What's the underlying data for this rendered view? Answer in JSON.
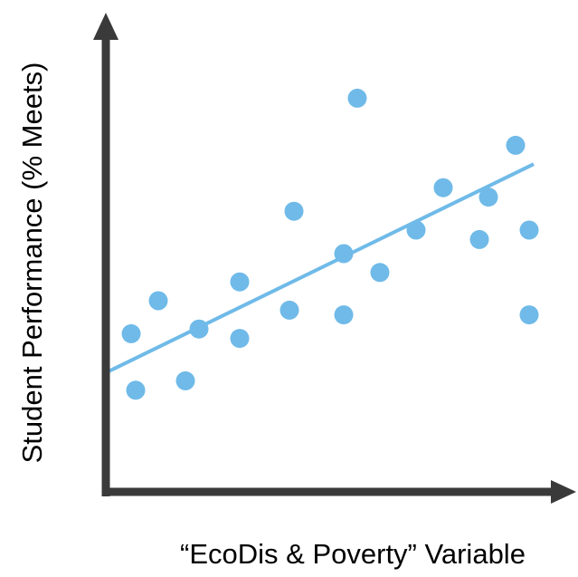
{
  "chart_data": {
    "type": "scatter",
    "title": "",
    "xlabel": "“EcoDis & Poverty” Variable",
    "ylabel": "Student Performance (% Meets)",
    "xlim": [
      0,
      100
    ],
    "ylim": [
      0,
      100
    ],
    "grid": false,
    "ticks_shown": false,
    "series": [
      {
        "points": [
          {
            "x": 5,
            "y": 33
          },
          {
            "x": 6,
            "y": 21
          },
          {
            "x": 11,
            "y": 40
          },
          {
            "x": 17,
            "y": 23
          },
          {
            "x": 20,
            "y": 34
          },
          {
            "x": 29,
            "y": 32
          },
          {
            "x": 29,
            "y": 44
          },
          {
            "x": 40,
            "y": 38
          },
          {
            "x": 41,
            "y": 59
          },
          {
            "x": 52,
            "y": 37
          },
          {
            "x": 52,
            "y": 50
          },
          {
            "x": 55,
            "y": 83
          },
          {
            "x": 60,
            "y": 46
          },
          {
            "x": 68,
            "y": 55
          },
          {
            "x": 74,
            "y": 64
          },
          {
            "x": 82,
            "y": 53
          },
          {
            "x": 84,
            "y": 62
          },
          {
            "x": 90,
            "y": 73
          },
          {
            "x": 93,
            "y": 55
          },
          {
            "x": 93,
            "y": 37
          }
        ]
      }
    ],
    "trendline": {
      "x": [
        0,
        94
      ],
      "y": [
        25,
        69
      ]
    }
  },
  "colors": {
    "axis": "#3a3a3a",
    "points": "#6fbae8",
    "trendline": "#6fbae8",
    "text": "#000000"
  }
}
